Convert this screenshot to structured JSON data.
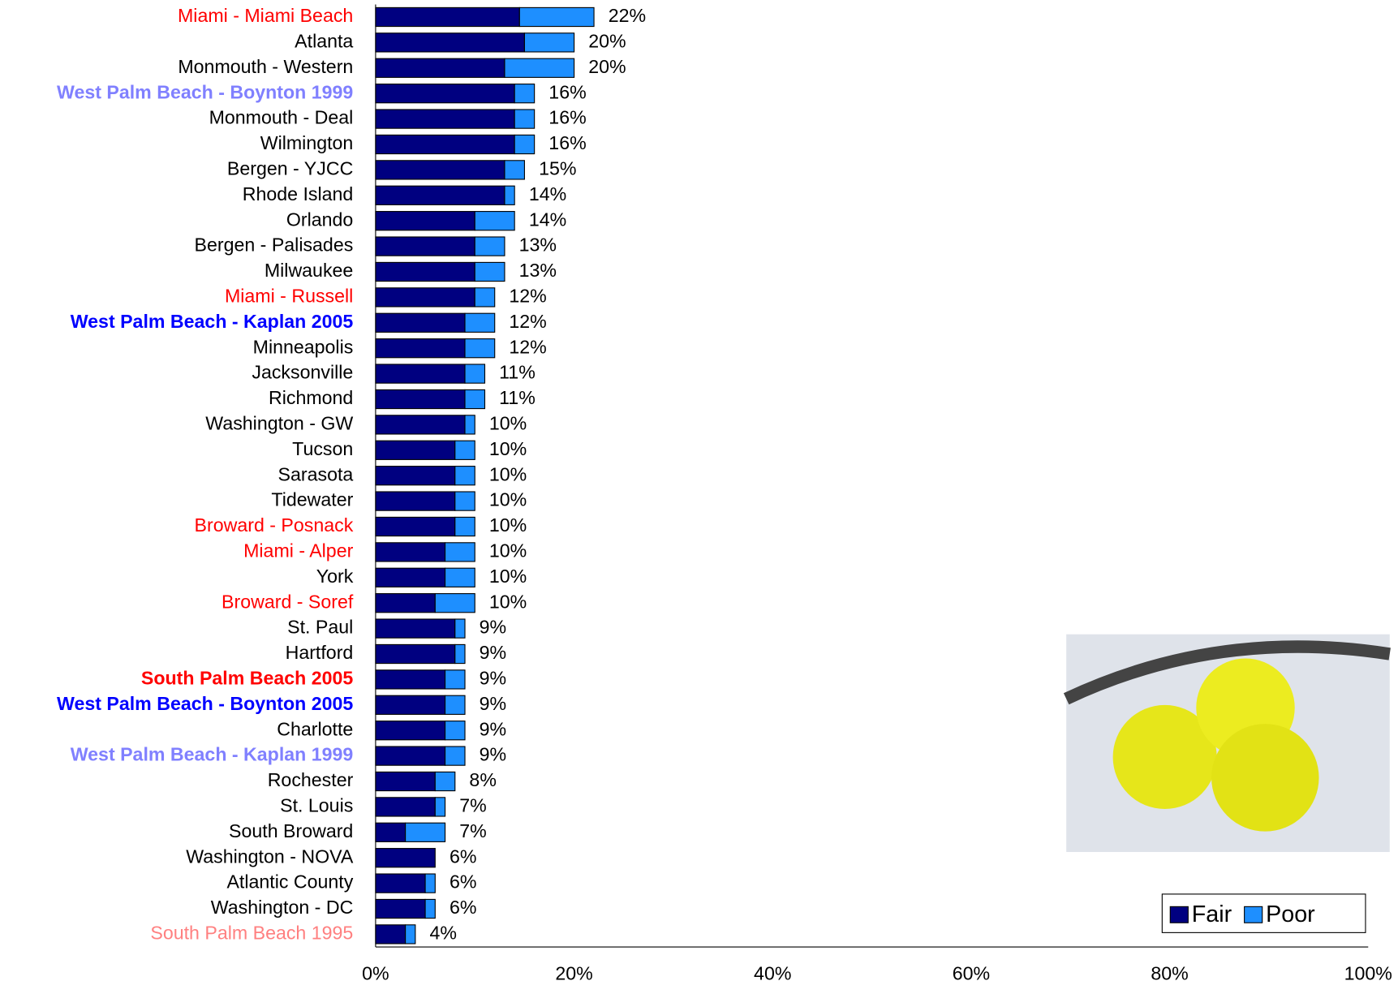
{
  "chart_data": {
    "type": "stacked-barh",
    "categories": [
      "Miami - Miami Beach",
      "Atlanta",
      "Monmouth - Western",
      "West Palm Beach - Boynton 1999",
      "Monmouth - Deal",
      "Wilmington",
      "Bergen - YJCC",
      "Rhode Island",
      "Orlando",
      "Bergen - Palisades",
      "Milwaukee",
      "Miami - Russell",
      "West Palm Beach - Kaplan 2005",
      "Minneapolis",
      "Jacksonville",
      "Richmond",
      "Washington - GW",
      "Tucson",
      "Sarasota",
      "Tidewater",
      "Broward - Posnack",
      "Miami - Alper",
      "York",
      "Broward - Soref",
      "St. Paul",
      "Hartford",
      "South Palm Beach 2005",
      "West Palm Beach - Boynton 2005",
      "Charlotte",
      "West Palm Beach - Kaplan 1999",
      "Rochester",
      "St. Louis",
      "South Broward",
      "Washington - NOVA",
      "Atlantic County",
      "Washington - DC",
      "South Palm Beach 1995"
    ],
    "category_colors": [
      "#ff0000",
      "#000000",
      "#000000",
      "#8080ff",
      "#000000",
      "#000000",
      "#000000",
      "#000000",
      "#000000",
      "#000000",
      "#000000",
      "#ff0000",
      "#0000ff",
      "#000000",
      "#000000",
      "#000000",
      "#000000",
      "#000000",
      "#000000",
      "#000000",
      "#ff0000",
      "#ff0000",
      "#000000",
      "#ff0000",
      "#000000",
      "#000000",
      "#ff0000",
      "#0000ff",
      "#000000",
      "#8080ff",
      "#000000",
      "#000000",
      "#000000",
      "#000000",
      "#000000",
      "#000000",
      "#ff8080"
    ],
    "category_bold": [
      false,
      false,
      false,
      true,
      false,
      false,
      false,
      false,
      false,
      false,
      false,
      false,
      true,
      false,
      false,
      false,
      false,
      false,
      false,
      false,
      false,
      false,
      false,
      false,
      false,
      false,
      true,
      true,
      false,
      true,
      false,
      false,
      false,
      false,
      false,
      false,
      false
    ],
    "series": [
      {
        "name": "Fair",
        "color": "#000080",
        "values": [
          14.5,
          15,
          13,
          14,
          14,
          14,
          13,
          13,
          10,
          10,
          10,
          10,
          9,
          9,
          9,
          9,
          9,
          8,
          8,
          8,
          8,
          7,
          7,
          6,
          8,
          8,
          7,
          7,
          7,
          7,
          6,
          6,
          3,
          6,
          5,
          5,
          3
        ]
      },
      {
        "name": "Poor",
        "color": "#1e8fff",
        "values": [
          7.5,
          5,
          7,
          2,
          2,
          2,
          2,
          1,
          4,
          3,
          3,
          2,
          3,
          3,
          2,
          2,
          1,
          2,
          2,
          2,
          2,
          3,
          3,
          4,
          1,
          1,
          2,
          2,
          2,
          2,
          2,
          1,
          4,
          0,
          1,
          1,
          1
        ]
      }
    ],
    "totals": {
      "values": [
        22,
        20,
        20,
        16,
        16,
        16,
        15,
        14,
        14,
        13,
        13,
        12,
        12,
        12,
        11,
        11,
        10,
        10,
        10,
        10,
        10,
        10,
        10,
        10,
        9,
        9,
        9,
        9,
        9,
        9,
        8,
        7,
        7,
        6,
        6,
        6,
        4
      ],
      "value_labels": [
        "22%",
        "20%",
        "20%",
        "16%",
        "16%",
        "16%",
        "15%",
        "14%",
        "14%",
        "13%",
        "13%",
        "12%",
        "12%",
        "12%",
        "11%",
        "11%",
        "10%",
        "10%",
        "10%",
        "10%",
        "10%",
        "10%",
        "10%",
        "10%",
        "9%",
        "9%",
        "9%",
        "9%",
        "9%",
        "9%",
        "8%",
        "7%",
        "7%",
        "6%",
        "6%",
        "6%",
        "4%"
      ]
    },
    "xlim": [
      0,
      100
    ],
    "xticks": [
      {
        "value": 0,
        "label": "0%"
      },
      {
        "value": 20,
        "label": "20%"
      },
      {
        "value": 40,
        "label": "40%"
      },
      {
        "value": 60,
        "label": "60%"
      },
      {
        "value": 80,
        "label": "80%"
      },
      {
        "value": 100,
        "label": "100%"
      }
    ],
    "legend": "bottom-right"
  }
}
